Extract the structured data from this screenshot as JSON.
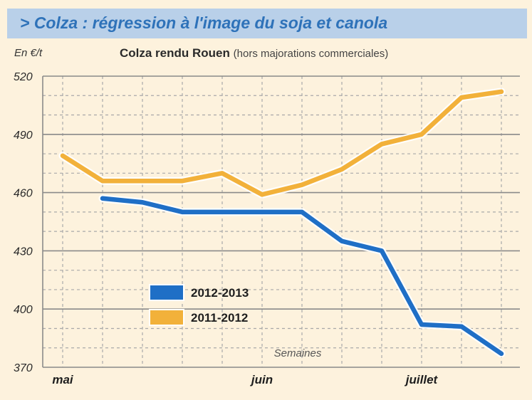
{
  "banner": {
    "title": "> Colza : régression à l'image du soja et canola"
  },
  "chart_data": {
    "type": "line",
    "title": "Colza rendu Rouen",
    "subtitle": "(hors majorations commerciales)",
    "ylabel": "En €/t",
    "xlabel": "Semaines",
    "ylim": [
      370,
      520
    ],
    "yticks": [
      520,
      490,
      460,
      430,
      400,
      370
    ],
    "xlim": [
      0,
      11
    ],
    "x_month_labels": [
      {
        "label": "mai",
        "x": 0
      },
      {
        "label": "juin",
        "x": 5
      },
      {
        "label": "juillet",
        "x": 9
      }
    ],
    "series": [
      {
        "name": "2012-2013",
        "color": "#1f6fc6",
        "x": [
          1,
          2,
          3,
          4,
          5,
          6,
          7,
          8,
          9,
          10,
          11
        ],
        "values": [
          457,
          455,
          450,
          450,
          450,
          450,
          435,
          430,
          392,
          391,
          377
        ]
      },
      {
        "name": "2011-2012",
        "color": "#f2b13a",
        "x": [
          0,
          1,
          2,
          3,
          4,
          5,
          6,
          7,
          8,
          9,
          10,
          11
        ],
        "values": [
          479,
          466,
          466,
          466,
          470,
          459,
          464,
          472,
          485,
          490,
          509,
          512
        ]
      }
    ],
    "legend_position": "bottom-left"
  }
}
